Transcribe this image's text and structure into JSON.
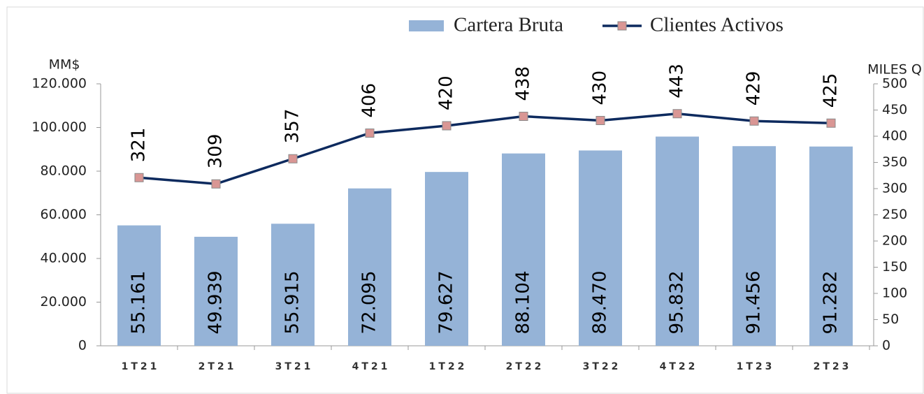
{
  "chart_data": {
    "type": "bar",
    "categories": [
      "1T21",
      "2T21",
      "3T21",
      "4T21",
      "1T22",
      "2T22",
      "3T22",
      "4T22",
      "1T23",
      "2T23"
    ],
    "series": [
      {
        "name": "Cartera Bruta",
        "type": "bar",
        "color": "#95b3d7",
        "values": [
          55161,
          49939,
          55915,
          72095,
          79627,
          88104,
          89470,
          95832,
          91456,
          91282
        ],
        "value_labels": [
          "55.161",
          "49.939",
          "55.915",
          "72.095",
          "79.627",
          "88.104",
          "89.470",
          "95.832",
          "91.456",
          "91.282"
        ]
      },
      {
        "name": "Clientes Activos",
        "type": "line",
        "axis": "y2",
        "color": "#0d2a5e",
        "marker_color": "#d99694",
        "values": [
          321,
          309,
          357,
          406,
          420,
          438,
          430,
          443,
          429,
          425
        ]
      }
    ],
    "y_label": "MM$",
    "y2_label": "MILES Q",
    "ylim": [
      0,
      120000
    ],
    "yticks": [
      0,
      {
        "value": 20000,
        "label": "20.000"
      },
      {
        "value": 40000,
        "label": "40.000"
      },
      {
        "value": 60000,
        "label": "60.000"
      },
      {
        "value": 80000,
        "label": "80.000"
      },
      {
        "value": 100000,
        "label": "100.000"
      },
      {
        "value": 120000,
        "label": "120.000"
      }
    ],
    "y2lim": [
      0,
      500
    ],
    "y2ticks": [
      0,
      50,
      100,
      150,
      200,
      250,
      300,
      350,
      400,
      450,
      500
    ],
    "legend": "top"
  }
}
